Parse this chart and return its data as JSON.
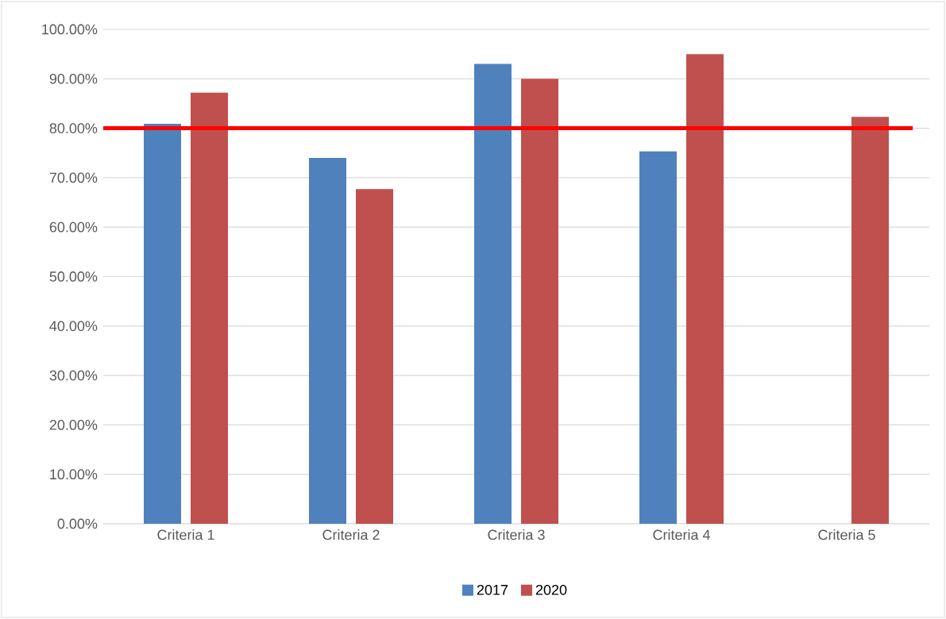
{
  "chart_data": {
    "type": "bar",
    "categories": [
      "Criteria 1",
      "Criteria 2",
      "Criteria 3",
      "Criteria 4",
      "Criteria 5"
    ],
    "series": [
      {
        "name": "2017",
        "color": "#4f81bd",
        "values": [
          80.9,
          74.0,
          93.0,
          75.3,
          null
        ]
      },
      {
        "name": "2020",
        "color": "#c0504d",
        "values": [
          87.2,
          67.7,
          90.0,
          95.0,
          82.3
        ]
      }
    ],
    "ylim": [
      0,
      100
    ],
    "yticks": [
      {
        "value": 0,
        "label": "0.00%"
      },
      {
        "value": 10,
        "label": "10.00%"
      },
      {
        "value": 20,
        "label": "20.00%"
      },
      {
        "value": 30,
        "label": "30.00%"
      },
      {
        "value": 40,
        "label": "40.00%"
      },
      {
        "value": 50,
        "label": "50.00%"
      },
      {
        "value": 60,
        "label": "60.00%"
      },
      {
        "value": 70,
        "label": "70.00%"
      },
      {
        "value": 80,
        "label": "80.00%"
      },
      {
        "value": 90,
        "label": "90.00%"
      },
      {
        "value": 100,
        "label": "100.00%"
      }
    ],
    "ref_lines": [
      {
        "axis": "y",
        "value": 80,
        "color": "#ff0000"
      }
    ],
    "grid": "y",
    "legend": "bottom"
  }
}
